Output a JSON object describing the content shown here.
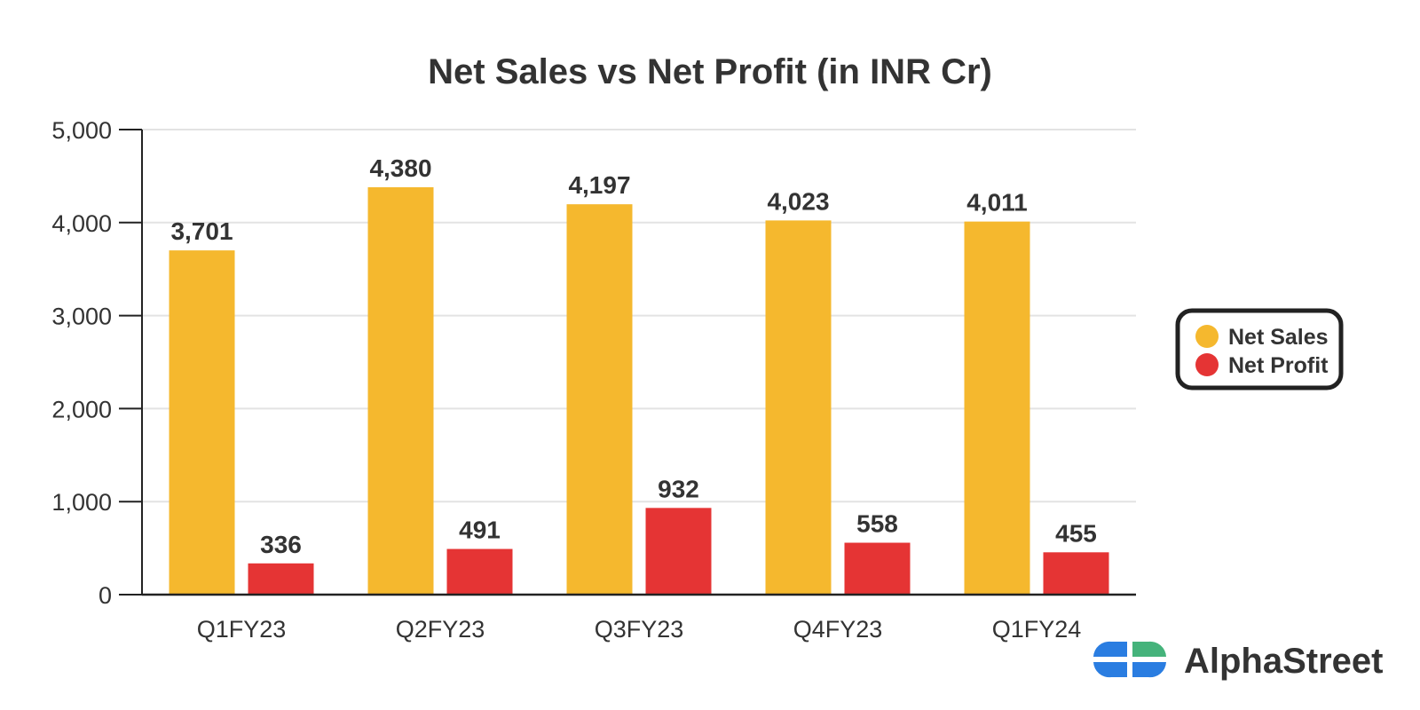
{
  "colors": {
    "net_sales": "#F5B82E",
    "net_profit": "#E53434",
    "text": "#333333",
    "grid": "#E3E3E3",
    "axis": "#222222"
  },
  "chart_data": {
    "type": "bar",
    "title": "Net Sales vs Net Profit (in INR Cr)",
    "xlabel": "",
    "ylabel": "",
    "categories": [
      "Q1FY23",
      "Q2FY23",
      "Q3FY23",
      "Q4FY23",
      "Q1FY24"
    ],
    "series": [
      {
        "name": "Net Sales",
        "values": [
          3701,
          4380,
          4197,
          4023,
          4011
        ],
        "labels": [
          "3,701",
          "4,380",
          "4,197",
          "4,023",
          "4,011"
        ]
      },
      {
        "name": "Net Profit",
        "values": [
          336,
          491,
          932,
          558,
          455
        ],
        "labels": [
          "336",
          "491",
          "932",
          "558",
          "455"
        ]
      }
    ],
    "ylim": [
      0,
      5000
    ],
    "yticks": [
      0,
      1000,
      2000,
      3000,
      4000,
      5000
    ],
    "ytick_labels": [
      "0",
      "1,000",
      "2,000",
      "3,000",
      "4,000",
      "5,000"
    ],
    "grid": true,
    "legend_position": "right"
  },
  "brand": {
    "logo_icon": "alphastreet-logo-icon",
    "name": "AlphaStreet"
  }
}
